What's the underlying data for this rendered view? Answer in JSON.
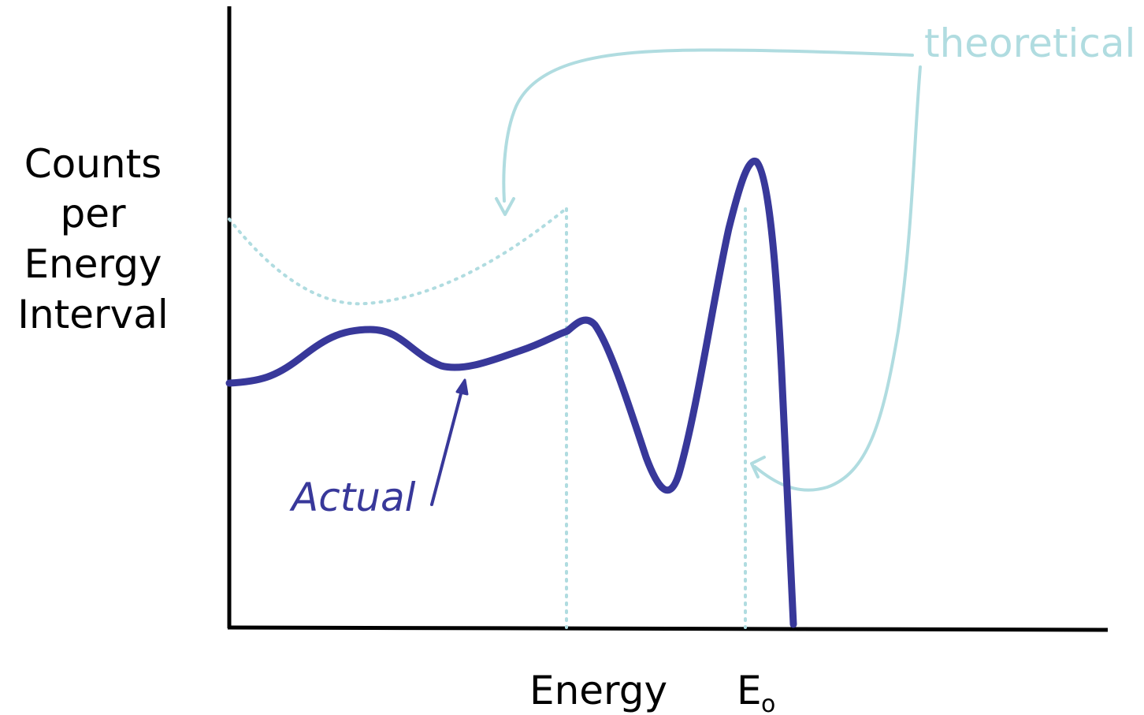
{
  "y_axis_label": [
    "Counts",
    "per",
    "Energy",
    "Interval"
  ],
  "x_axis_label": "Energy",
  "marker_label": {
    "main": "E",
    "subscript": "o"
  },
  "annotations": {
    "actual": "Actual",
    "theoretical": "theoretical"
  },
  "colors": {
    "actual": "#38389a",
    "theoretical": "#b0dce0",
    "axis": "#000000"
  }
}
